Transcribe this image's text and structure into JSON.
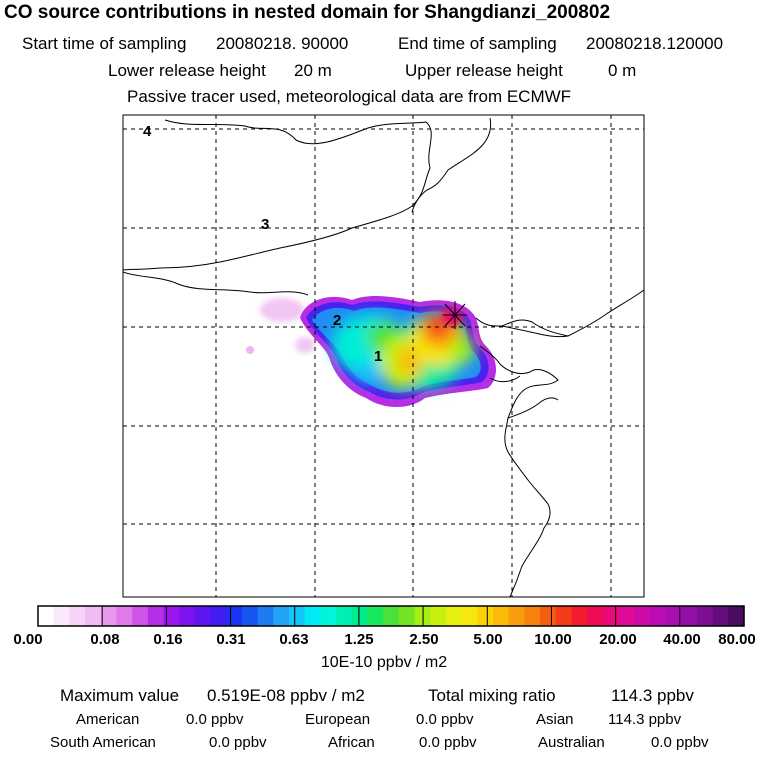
{
  "header": {
    "title": "CO  source contributions in nested domain for Shangdianzi_200802",
    "start_label": "Start time of sampling",
    "start_value": "20080218. 90000",
    "end_label": "End time of sampling",
    "end_value": "20080218.120000",
    "lower_label": "Lower release height",
    "lower_value": "20 m",
    "upper_label": "Upper release height",
    "upper_value": "0 m",
    "tracer_note": "Passive tracer used, meteorological data are from ECMWF"
  },
  "map": {
    "region_labels": [
      "1",
      "2",
      "3",
      "4"
    ],
    "receptor_marker": "receptor-star-icon"
  },
  "colorbar": {
    "units": "10E-10 ppbv / m2",
    "tick_labels": [
      "0.00",
      "0.08",
      "0.16",
      "0.31",
      "0.63",
      "1.25",
      "2.50",
      "5.00",
      "10.00",
      "20.00",
      "40.00",
      "80.00"
    ],
    "colors": [
      "#ffffff",
      "#fbe9fb",
      "#f6d3f6",
      "#f1bcf1",
      "#e898ed",
      "#e07ae8",
      "#cf55e8",
      "#b62fe8",
      "#9b17ef",
      "#7d13ef",
      "#5f15f0",
      "#421df1",
      "#1c33f2",
      "#1556f1",
      "#1f7bf3",
      "#23a3f5",
      "#16c5f8",
      "#00eaf5",
      "#00f5d9",
      "#00f0b3",
      "#00eb8a",
      "#18e85c",
      "#4ae13a",
      "#74e322",
      "#a6ec15",
      "#c8ef0d",
      "#e6f10f",
      "#f6e70c",
      "#fbd208",
      "#fbb90a",
      "#f99d0d",
      "#f7800f",
      "#f45e14",
      "#f43c1a",
      "#f21c31",
      "#ef0c55",
      "#e90a7a",
      "#de0a98",
      "#cf0ba7",
      "#bd0cb4",
      "#a80fb3",
      "#930fa6",
      "#7d0f93",
      "#660d7c",
      "#4a0a5e"
    ]
  },
  "summary": {
    "max_label": "Maximum value",
    "max_value": "0.519E-08 ppbv / m2",
    "total_label": "Total mixing ratio",
    "total_value": "114.3 ppbv",
    "regions": [
      {
        "name": "American",
        "value": "0.0 ppbv"
      },
      {
        "name": "European",
        "value": "0.0 ppbv"
      },
      {
        "name": "Asian",
        "value": "114.3 ppbv"
      },
      {
        "name": "South American",
        "value": "0.0 ppbv"
      },
      {
        "name": "African",
        "value": "0.0 ppbv"
      },
      {
        "name": "Australian",
        "value": "0.0 ppbv"
      }
    ]
  }
}
